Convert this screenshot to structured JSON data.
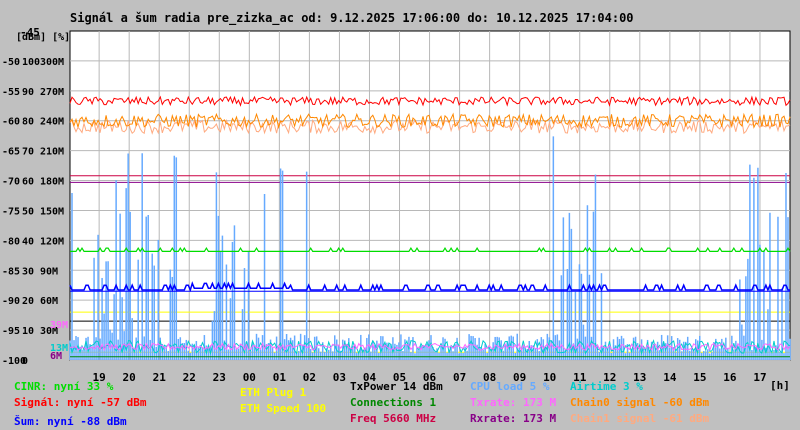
{
  "title": "Signál a šum radia pre_zizka_ac od: 9.12.2025 17:06:00 do: 10.12.2025 17:04:00",
  "units_label": "[dBm] [%]",
  "y_top_label": "-45",
  "x_unit": "[h]",
  "colors": {
    "background": "#c0c0c0",
    "plot": "#ffffff",
    "grid": "#b8b8b8",
    "cinr": "#00dd00",
    "signal": "#ff0000",
    "noise": "#0000ff",
    "chain0": "#ff8800",
    "chain1": "#ffaa80",
    "cpu": "#66aaff",
    "airtime": "#00cccc",
    "rxrate": "#880088",
    "txrate": "#ff66ff",
    "freq": "#cc0044",
    "eth_plug": "#ffff00",
    "connections": "#008800"
  },
  "chart_data": {
    "type": "line",
    "title": "Signál a šum radia pre_zizka_ac od: 9.12.2025 17:06:00 do: 10.12.2025 17:04:00",
    "x_ticks": [
      "19",
      "20",
      "21",
      "22",
      "23",
      "00",
      "01",
      "02",
      "03",
      "04",
      "05",
      "06",
      "07",
      "08",
      "09",
      "10",
      "11",
      "12",
      "13",
      "14",
      "15",
      "16",
      "17"
    ],
    "y_ticks_dbm": [
      "-50",
      "-55",
      "-60",
      "-65",
      "-70",
      "-75",
      "-80",
      "-85",
      "-90",
      "-95",
      "-100"
    ],
    "y_ticks_percent": [
      "100",
      "90",
      "80",
      "70",
      "60",
      "50",
      "40",
      "30",
      "20",
      "10",
      "0"
    ],
    "y_ticks_rate": [
      "300M",
      "270M",
      "240M",
      "210M",
      "180M",
      "150M",
      "120M",
      "90M",
      "60M",
      "30M"
    ],
    "extra_rate_labels": [
      "39M",
      "13M",
      "6M"
    ],
    "ylim_dbm": [
      -100,
      -45
    ],
    "series": [
      {
        "name": "Signál",
        "baseline_dbm": -57
      },
      {
        "name": "Chain0 signal",
        "baseline_dbm": -60
      },
      {
        "name": "Chain1 signal",
        "baseline_dbm": -61
      },
      {
        "name": "Šum",
        "baseline_dbm": -88
      },
      {
        "name": "CINR",
        "baseline_percent": 33
      },
      {
        "name": "CPU load",
        "baseline_percent": 5
      },
      {
        "name": "Airtime",
        "baseline_percent": 3
      },
      {
        "name": "Rxrate",
        "baseline_rate_mbps": 173
      },
      {
        "name": "Txrate",
        "baseline_rate_mbps": 173
      },
      {
        "name": "Connections",
        "value": 1
      },
      {
        "name": "ETH Plug",
        "value": 1
      }
    ]
  },
  "legend": {
    "cinr": "CINR: nyní 33 %",
    "signal": "Signál: nyní -57 dBm",
    "noise": "Šum: nyní -88 dBm",
    "eth_plug": "ETH Plug 1",
    "eth_speed": "ETH Speed 100",
    "txpower": "TxPower 14 dBm",
    "connections": "Connections 1",
    "freq": "Freq 5660 MHz",
    "cpu": "CPU load 5 %",
    "txrate": "Txrate: 173 M",
    "rxrate": "Rxrate: 173 M",
    "airtime": "Airtime 3 %",
    "chain0": "Chain0 signal -60 dBm",
    "chain1": "Chain1 signal -61 dBm"
  }
}
